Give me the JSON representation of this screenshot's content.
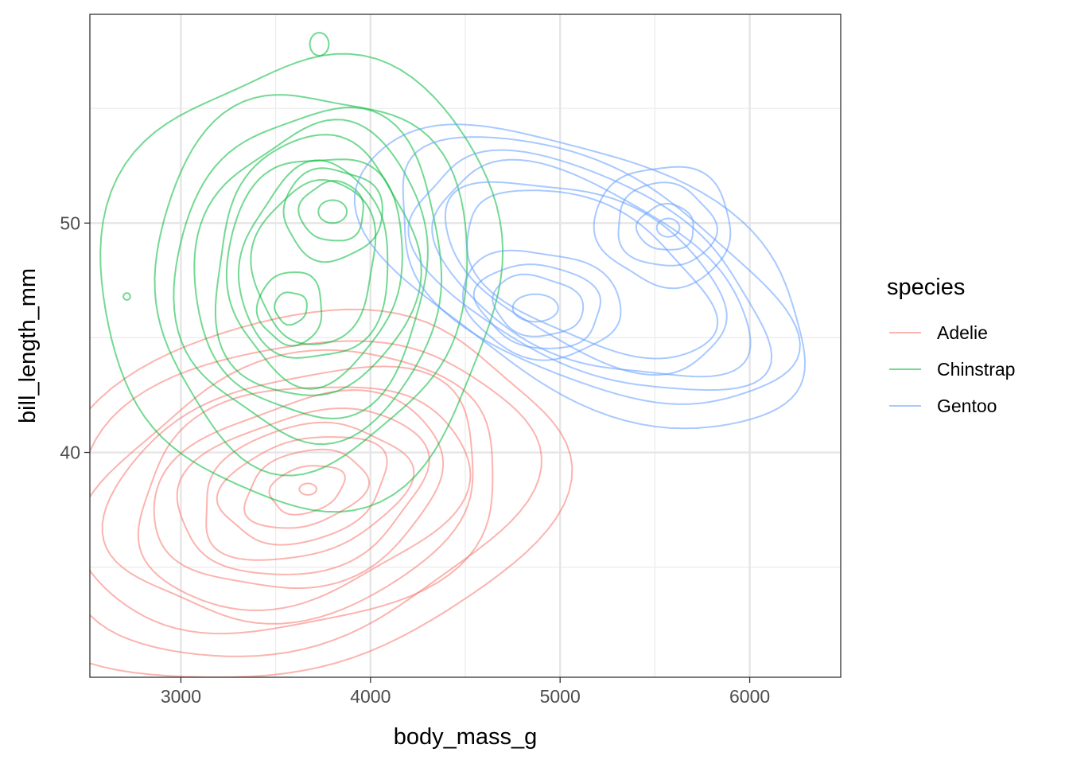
{
  "chart_data": {
    "type": "line",
    "subtype": "2d-density-contour",
    "title": "",
    "xlabel": "body_mass_g",
    "ylabel": "bill_length_mm",
    "xlim": [
      2520,
      6480
    ],
    "ylim": [
      30.2,
      59.1
    ],
    "x_ticks": [
      3000,
      4000,
      5000,
      6000
    ],
    "x_minor": [
      3500,
      4500,
      5500
    ],
    "y_ticks": [
      40,
      50
    ],
    "y_minor": [
      35,
      45,
      55
    ],
    "grid": true,
    "legend": {
      "title": "species",
      "position": "right"
    },
    "series": [
      {
        "name": "Adelie",
        "color": "#F8766D",
        "peaks": [
          {
            "x": 3670,
            "y": 38.4
          }
        ],
        "levels": [
          {
            "cx": 3570,
            "cy": 38.0,
            "rx": 1450,
            "ry": 7.6,
            "rot": 16
          },
          {
            "cx": 3590,
            "cy": 38.1,
            "rx": 1260,
            "ry": 6.5,
            "rot": 16
          },
          {
            "cx": 3600,
            "cy": 38.1,
            "rx": 1120,
            "ry": 5.8,
            "rot": 16
          },
          {
            "cx": 3610,
            "cy": 38.2,
            "rx": 1000,
            "ry": 5.2,
            "rot": 16
          },
          {
            "cx": 3620,
            "cy": 38.2,
            "rx": 890,
            "ry": 4.6,
            "rot": 16
          },
          {
            "cx": 3630,
            "cy": 38.3,
            "rx": 780,
            "ry": 4.0,
            "rot": 16
          },
          {
            "cx": 3640,
            "cy": 38.3,
            "rx": 670,
            "ry": 3.4,
            "rot": 16
          },
          {
            "cx": 3645,
            "cy": 38.3,
            "rx": 560,
            "ry": 2.8,
            "rot": 16
          },
          {
            "cx": 3650,
            "cy": 38.4,
            "rx": 450,
            "ry": 2.2,
            "rot": 16
          },
          {
            "cx": 3655,
            "cy": 38.4,
            "rx": 330,
            "ry": 1.6,
            "rot": 16
          },
          {
            "cx": 3665,
            "cy": 38.4,
            "rx": 200,
            "ry": 1.0,
            "rot": 16
          },
          {
            "cx": 3670,
            "cy": 38.4,
            "rx": 45,
            "ry": 0.25,
            "rot": 0
          }
        ]
      },
      {
        "name": "Chinstrap",
        "color": "#00BA38",
        "peaks": [
          {
            "x": 3800,
            "y": 50.5
          },
          {
            "x": 3580,
            "y": 46.3
          }
        ],
        "levels": [
          {
            "cx": 3650,
            "cy": 47.5,
            "rx": 1050,
            "ry": 9.8,
            "rot": -8
          },
          {
            "cx": 3680,
            "cy": 47.7,
            "rx": 820,
            "ry": 8.2,
            "rot": -8
          },
          {
            "cx": 3690,
            "cy": 47.8,
            "rx": 700,
            "ry": 7.2,
            "rot": -8
          },
          {
            "cx": 3700,
            "cy": 47.9,
            "rx": 610,
            "ry": 6.4,
            "rot": -8
          },
          {
            "cx": 3705,
            "cy": 48.0,
            "rx": 530,
            "ry": 5.7,
            "rot": -8
          },
          {
            "cx": 3710,
            "cy": 48.1,
            "rx": 460,
            "ry": 5.0,
            "rot": -8
          },
          {
            "cx": 3710,
            "cy": 48.2,
            "rx": 390,
            "ry": 4.3,
            "rot": -8
          },
          {
            "cx": 3710,
            "cy": 48.3,
            "rx": 320,
            "ry": 3.6,
            "rot": -8
          },
          {
            "cx": 3800,
            "cy": 50.4,
            "rx": 260,
            "ry": 2.0,
            "rot": 0
          },
          {
            "cx": 3800,
            "cy": 50.5,
            "rx": 170,
            "ry": 1.3,
            "rot": 0
          },
          {
            "cx": 3800,
            "cy": 50.5,
            "rx": 75,
            "ry": 0.5,
            "rot": 0
          },
          {
            "cx": 3580,
            "cy": 46.3,
            "rx": 170,
            "ry": 1.6,
            "rot": 0
          },
          {
            "cx": 3580,
            "cy": 46.3,
            "rx": 85,
            "ry": 0.7,
            "rot": 0
          },
          {
            "cx": 3730,
            "cy": 57.8,
            "rx": 50,
            "ry": 0.5,
            "rot": 0
          },
          {
            "cx": 2715,
            "cy": 46.8,
            "rx": 18,
            "ry": 0.15,
            "rot": 0
          }
        ]
      },
      {
        "name": "Gentoo",
        "color": "#619CFF",
        "peaks": [
          {
            "x": 4870,
            "y": 46.3
          },
          {
            "x": 5570,
            "y": 49.8
          }
        ],
        "levels": [
          {
            "cx": 5150,
            "cy": 47.8,
            "rx": 1280,
            "ry": 5.2,
            "rot": -26
          },
          {
            "cx": 5150,
            "cy": 47.8,
            "rx": 1130,
            "ry": 4.6,
            "rot": -26
          },
          {
            "cx": 5150,
            "cy": 47.8,
            "rx": 1010,
            "ry": 4.1,
            "rot": -26
          },
          {
            "cx": 5150,
            "cy": 47.8,
            "rx": 900,
            "ry": 3.7,
            "rot": -26
          },
          {
            "cx": 5150,
            "cy": 47.8,
            "rx": 800,
            "ry": 3.3,
            "rot": -26
          },
          {
            "cx": 5150,
            "cy": 47.8,
            "rx": 710,
            "ry": 2.9,
            "rot": -26
          },
          {
            "cx": 4900,
            "cy": 46.5,
            "rx": 420,
            "ry": 2.3,
            "rot": -10
          },
          {
            "cx": 4890,
            "cy": 46.4,
            "rx": 330,
            "ry": 1.8,
            "rot": -10
          },
          {
            "cx": 4880,
            "cy": 46.4,
            "rx": 240,
            "ry": 1.3,
            "rot": -10
          },
          {
            "cx": 4870,
            "cy": 46.3,
            "rx": 120,
            "ry": 0.6,
            "rot": 0
          },
          {
            "cx": 5550,
            "cy": 49.9,
            "rx": 360,
            "ry": 2.6,
            "rot": -10
          },
          {
            "cx": 5555,
            "cy": 49.9,
            "rx": 260,
            "ry": 1.8,
            "rot": -10
          },
          {
            "cx": 5560,
            "cy": 49.8,
            "rx": 150,
            "ry": 1.0,
            "rot": 0
          },
          {
            "cx": 5570,
            "cy": 49.8,
            "rx": 60,
            "ry": 0.4,
            "rot": 0
          }
        ]
      }
    ]
  }
}
